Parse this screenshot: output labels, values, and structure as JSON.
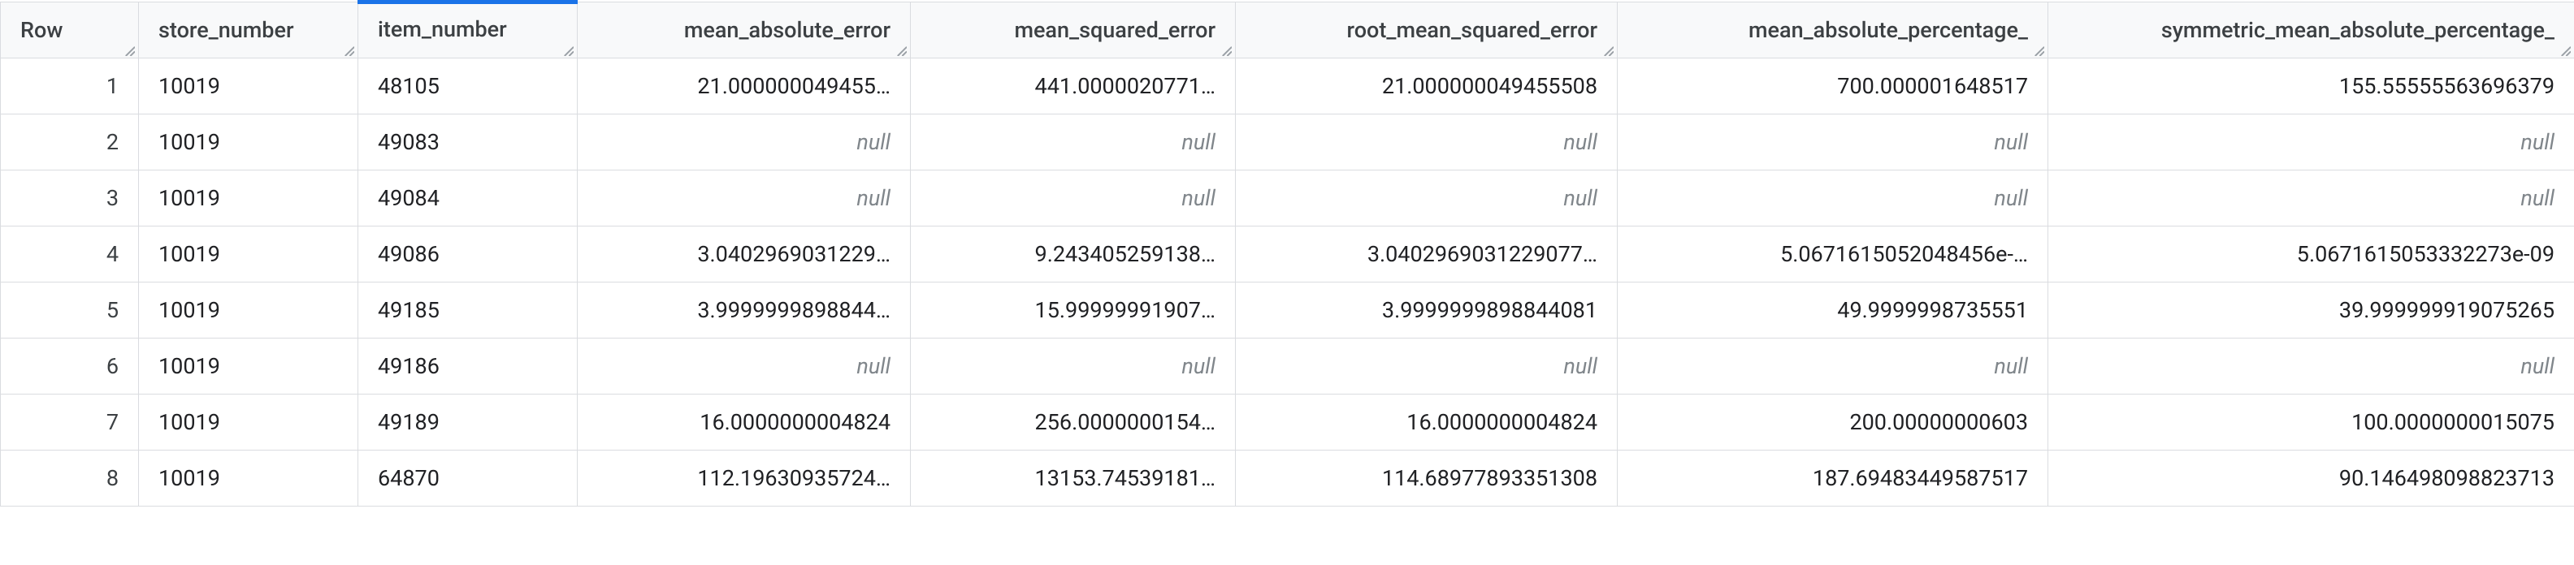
{
  "table": {
    "columns": [
      {
        "key": "row",
        "label": "Row",
        "class": "col-row",
        "active": false
      },
      {
        "key": "store",
        "label": "store_number",
        "class": "col-store",
        "active": false
      },
      {
        "key": "item",
        "label": "item_number",
        "class": "col-item",
        "active": true
      },
      {
        "key": "mae",
        "label": "mean_absolute_error",
        "class": "col-mae",
        "active": false
      },
      {
        "key": "mse",
        "label": "mean_squared_error",
        "class": "col-mse",
        "active": false
      },
      {
        "key": "rmse",
        "label": "root_mean_squared_error",
        "class": "col-rmse",
        "active": false
      },
      {
        "key": "mape",
        "label": "mean_absolute_percentage_",
        "class": "col-mape",
        "active": false
      },
      {
        "key": "smape",
        "label": "symmetric_mean_absolute_percentage_",
        "class": "col-smape",
        "active": false
      }
    ],
    "null_label": "null",
    "rows": [
      {
        "row": "1",
        "store": "10019",
        "item": "48105",
        "mae": "21.000000049455…",
        "mse": "441.0000020771…",
        "rmse": "21.000000049455508",
        "mape": "700.000001648517",
        "smape": "155.55555563696379"
      },
      {
        "row": "2",
        "store": "10019",
        "item": "49083",
        "mae": null,
        "mse": null,
        "rmse": null,
        "mape": null,
        "smape": null
      },
      {
        "row": "3",
        "store": "10019",
        "item": "49084",
        "mae": null,
        "mse": null,
        "rmse": null,
        "mape": null,
        "smape": null
      },
      {
        "row": "4",
        "store": "10019",
        "item": "49086",
        "mae": "3.0402969031229…",
        "mse": "9.243405259138…",
        "rmse": "3.0402969031229077…",
        "mape": "5.0671615052048456e-…",
        "smape": "5.0671615053332273e-09"
      },
      {
        "row": "5",
        "store": "10019",
        "item": "49185",
        "mae": "3.9999999898844…",
        "mse": "15.99999991907…",
        "rmse": "3.9999999898844081",
        "mape": "49.9999998735551",
        "smape": "39.999999919075265"
      },
      {
        "row": "6",
        "store": "10019",
        "item": "49186",
        "mae": null,
        "mse": null,
        "rmse": null,
        "mape": null,
        "smape": null
      },
      {
        "row": "7",
        "store": "10019",
        "item": "49189",
        "mae": "16.0000000004824",
        "mse": "256.0000000154…",
        "rmse": "16.0000000004824",
        "mape": "200.00000000603",
        "smape": "100.0000000015075"
      },
      {
        "row": "8",
        "store": "10019",
        "item": "64870",
        "mae": "112.19630935724…",
        "mse": "13153.74539181…",
        "rmse": "114.68977893351308",
        "mape": "187.69483449587517",
        "smape": "90.146498098823713"
      }
    ]
  },
  "colors": {
    "border": "#dadce0",
    "header_bg": "#f8f9fa",
    "text": "#202124",
    "null_text": "#80868b",
    "accent": "#1a73e8"
  }
}
